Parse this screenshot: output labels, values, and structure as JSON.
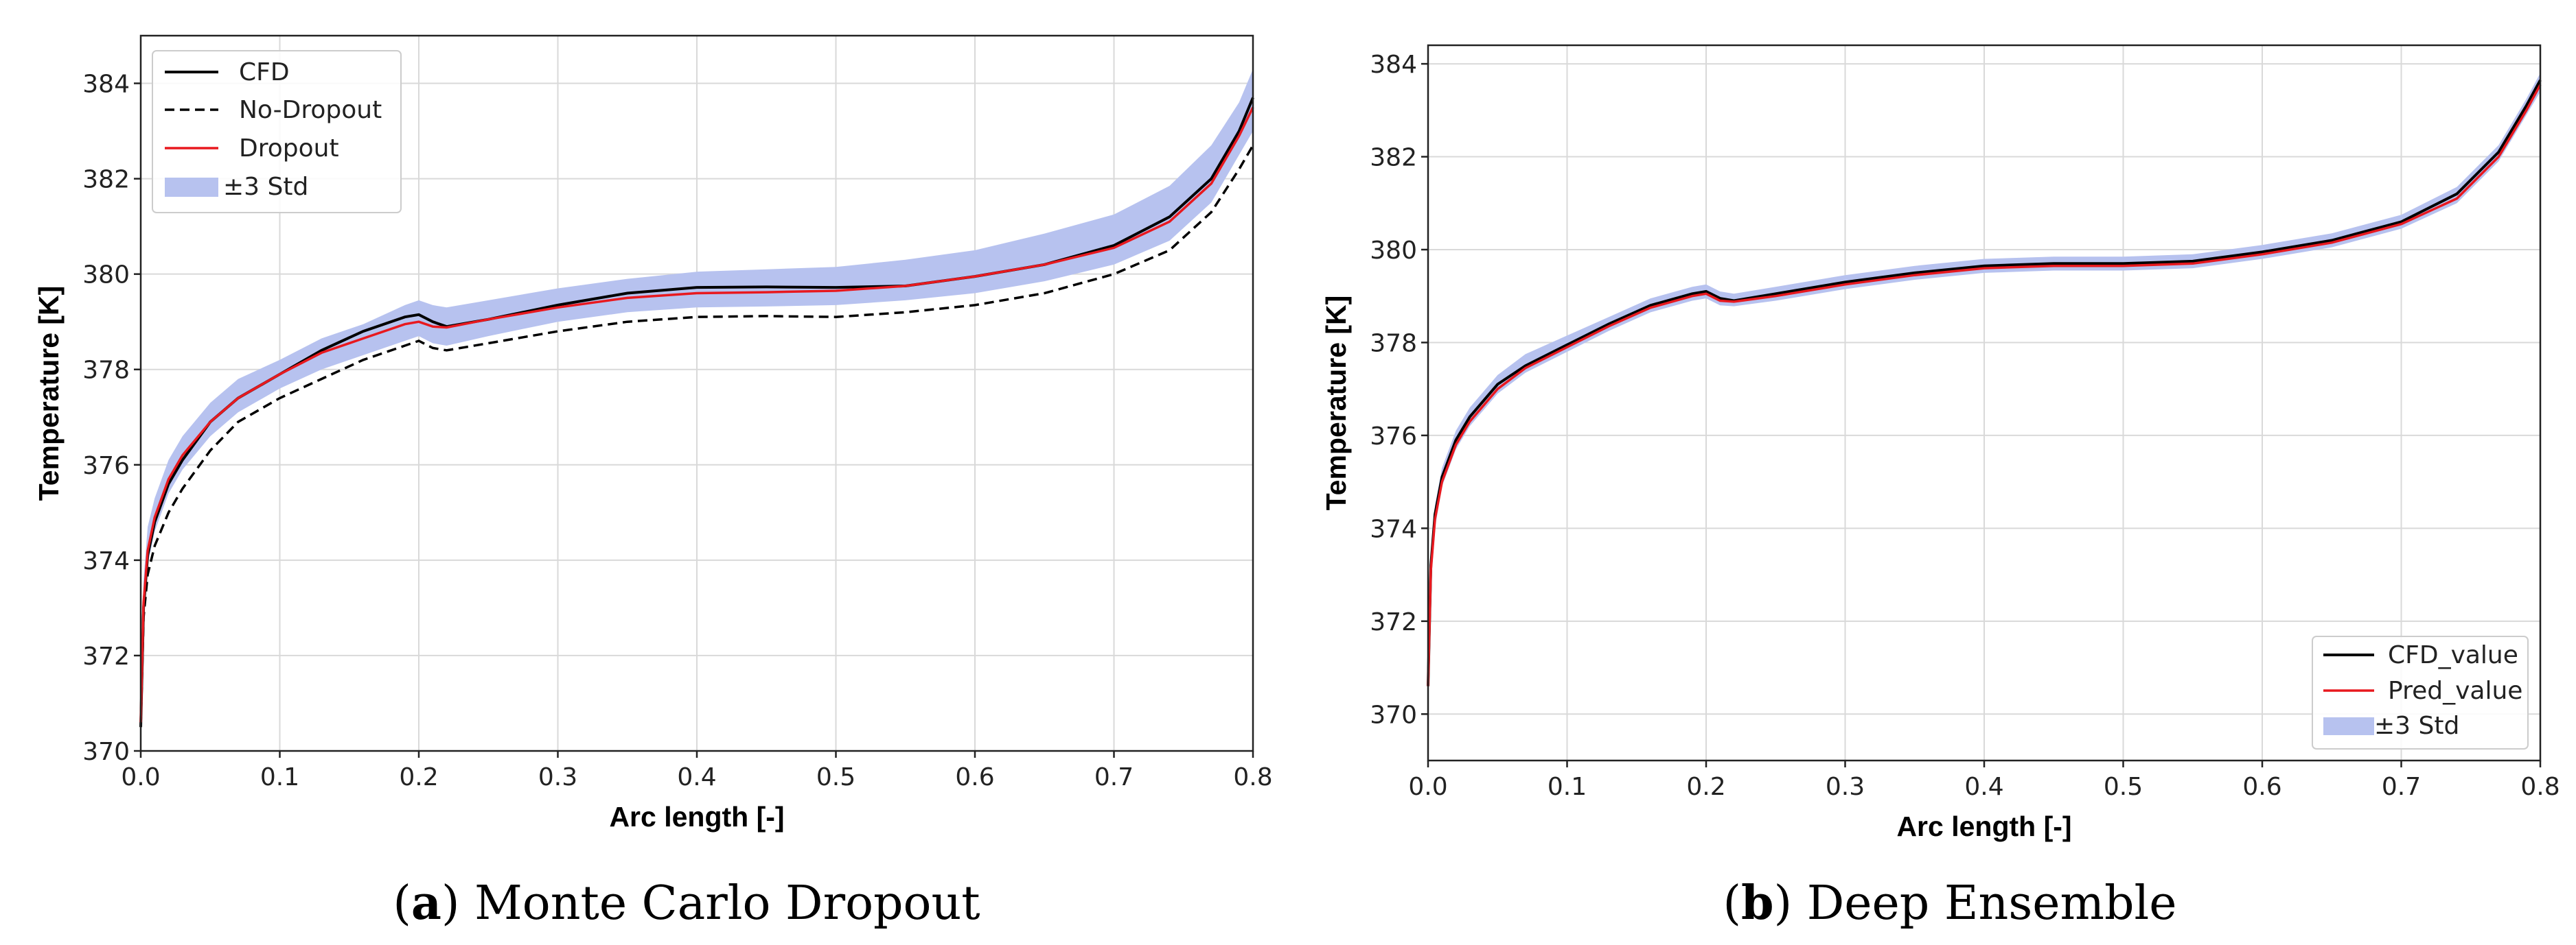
{
  "chart_data": [
    {
      "type": "line",
      "caption_letter": "a",
      "caption_title": "Monte Carlo Dropout",
      "title": "",
      "xlabel": "Arc length [-]",
      "ylabel": "Temperature [K]",
      "xlim": [
        0.0,
        0.8
      ],
      "ylim": [
        370,
        385
      ],
      "xticks": [
        0.0,
        0.1,
        0.2,
        0.3,
        0.4,
        0.5,
        0.6,
        0.7,
        0.8
      ],
      "xtick_labels": [
        "0.0",
        "0.1",
        "0.2",
        "0.3",
        "0.4",
        "0.5",
        "0.6",
        "0.7",
        "0.8"
      ],
      "yticks": [
        370,
        372,
        374,
        376,
        378,
        380,
        382,
        384
      ],
      "ytick_labels": [
        "370",
        "372",
        "374",
        "376",
        "378",
        "380",
        "382",
        "384"
      ],
      "grid": true,
      "legend_position": "top-left",
      "x": [
        0.0,
        0.002,
        0.005,
        0.01,
        0.02,
        0.03,
        0.05,
        0.07,
        0.1,
        0.13,
        0.16,
        0.19,
        0.2,
        0.21,
        0.22,
        0.25,
        0.3,
        0.35,
        0.4,
        0.45,
        0.5,
        0.55,
        0.6,
        0.65,
        0.7,
        0.74,
        0.77,
        0.79,
        0.8
      ],
      "series": [
        {
          "name": "CFD",
          "style": "solid",
          "color": "#000000",
          "values": [
            370.5,
            373.0,
            374.1,
            374.8,
            375.6,
            376.1,
            376.9,
            377.4,
            377.9,
            378.4,
            378.8,
            379.1,
            379.15,
            379.0,
            378.9,
            379.05,
            379.35,
            379.6,
            379.72,
            379.73,
            379.72,
            379.75,
            379.95,
            380.2,
            380.6,
            381.2,
            382.0,
            383.0,
            383.7
          ]
        },
        {
          "name": "No-Dropout",
          "style": "dashed",
          "color": "#000000",
          "values": [
            370.5,
            372.8,
            373.7,
            374.3,
            375.0,
            375.5,
            376.3,
            376.9,
            377.4,
            377.8,
            378.2,
            378.5,
            378.6,
            378.45,
            378.4,
            378.55,
            378.8,
            379.0,
            379.1,
            379.12,
            379.1,
            379.2,
            379.35,
            379.6,
            380.0,
            380.5,
            381.3,
            382.2,
            382.7
          ]
        },
        {
          "name": "Dropout",
          "style": "solid",
          "color": "#e8191f",
          "values": [
            370.6,
            373.1,
            374.2,
            374.9,
            375.7,
            376.2,
            376.9,
            377.4,
            377.9,
            378.35,
            378.65,
            378.95,
            379.0,
            378.9,
            378.88,
            379.05,
            379.3,
            379.5,
            379.6,
            379.62,
            379.65,
            379.75,
            379.95,
            380.2,
            380.55,
            381.1,
            381.9,
            382.9,
            383.5
          ]
        }
      ],
      "band": {
        "name": "±3 Std",
        "color": "#b7c2ef",
        "lower": [
          370.4,
          372.9,
          373.9,
          374.6,
          375.4,
          375.9,
          376.6,
          377.1,
          377.6,
          378.0,
          378.3,
          378.6,
          378.7,
          378.55,
          378.5,
          378.7,
          379.0,
          379.2,
          379.3,
          379.32,
          379.35,
          379.45,
          379.6,
          379.85,
          380.2,
          380.7,
          381.5,
          382.5,
          383.0
        ]
      },
      "band_upper": [
        370.8,
        373.6,
        374.7,
        375.3,
        376.1,
        376.6,
        377.3,
        377.8,
        378.2,
        378.65,
        378.95,
        379.35,
        379.45,
        379.35,
        379.3,
        379.45,
        379.7,
        379.9,
        380.05,
        380.1,
        380.15,
        380.3,
        380.5,
        380.85,
        381.25,
        381.85,
        382.7,
        383.6,
        384.3
      ],
      "legend_entries": [
        "CFD",
        "No-Dropout",
        "Dropout",
        "±3 Std"
      ]
    },
    {
      "type": "line",
      "caption_letter": "b",
      "caption_title": "Deep Ensemble",
      "title": "",
      "xlabel": "Arc length [-]",
      "ylabel": "Temperature [K]",
      "xlim": [
        0.0,
        0.8
      ],
      "ylim": [
        369,
        384.4
      ],
      "xticks": [
        0.0,
        0.1,
        0.2,
        0.3,
        0.4,
        0.5,
        0.6,
        0.7,
        0.8
      ],
      "xtick_labels": [
        "0.0",
        "0.1",
        "0.2",
        "0.3",
        "0.4",
        "0.5",
        "0.6",
        "0.7",
        "0.8"
      ],
      "yticks": [
        370,
        372,
        374,
        376,
        378,
        380,
        382,
        384
      ],
      "ytick_labels": [
        "370",
        "372",
        "374",
        "376",
        "378",
        "380",
        "382",
        "384"
      ],
      "grid": true,
      "legend_position": "bottom-right",
      "x": [
        0.0,
        0.002,
        0.005,
        0.01,
        0.02,
        0.03,
        0.05,
        0.07,
        0.1,
        0.13,
        0.16,
        0.19,
        0.2,
        0.21,
        0.22,
        0.25,
        0.3,
        0.35,
        0.4,
        0.45,
        0.5,
        0.55,
        0.6,
        0.65,
        0.7,
        0.74,
        0.77,
        0.79,
        0.8
      ],
      "series": [
        {
          "name": "CFD_value",
          "style": "solid",
          "color": "#000000",
          "values": [
            370.6,
            373.2,
            374.3,
            375.1,
            375.9,
            376.4,
            377.1,
            377.5,
            377.95,
            378.4,
            378.8,
            379.05,
            379.1,
            378.95,
            378.9,
            379.05,
            379.3,
            379.5,
            379.65,
            379.7,
            379.7,
            379.75,
            379.95,
            380.2,
            380.6,
            381.2,
            382.1,
            383.1,
            383.65
          ]
        },
        {
          "name": "Pred_value",
          "style": "solid",
          "color": "#e8191f",
          "values": [
            370.6,
            373.1,
            374.2,
            375.0,
            375.8,
            376.3,
            377.0,
            377.45,
            377.9,
            378.35,
            378.75,
            379.0,
            379.05,
            378.9,
            378.88,
            379.0,
            379.25,
            379.45,
            379.6,
            379.65,
            379.65,
            379.7,
            379.9,
            380.15,
            380.55,
            381.1,
            382.0,
            383.0,
            383.55
          ]
        }
      ],
      "band": {
        "name": "±3 Std",
        "color": "#b7c2ef",
        "lower": [
          370.5,
          373.0,
          374.0,
          374.9,
          375.7,
          376.2,
          376.9,
          377.35,
          377.8,
          378.25,
          378.65,
          378.9,
          378.95,
          378.8,
          378.78,
          378.9,
          379.15,
          379.35,
          379.5,
          379.55,
          379.55,
          379.6,
          379.8,
          380.05,
          380.45,
          381.0,
          381.9,
          382.9,
          383.4
        ]
      },
      "band_upper": [
        370.8,
        373.4,
        374.5,
        375.3,
        376.1,
        376.6,
        377.3,
        377.75,
        378.15,
        378.55,
        378.95,
        379.2,
        379.25,
        379.1,
        379.05,
        379.2,
        379.45,
        379.65,
        379.8,
        379.85,
        379.85,
        379.9,
        380.1,
        380.35,
        380.75,
        381.35,
        382.25,
        383.25,
        383.8
      ],
      "legend_entries": [
        "CFD_value",
        "Pred_value",
        "±3 Std"
      ]
    }
  ]
}
